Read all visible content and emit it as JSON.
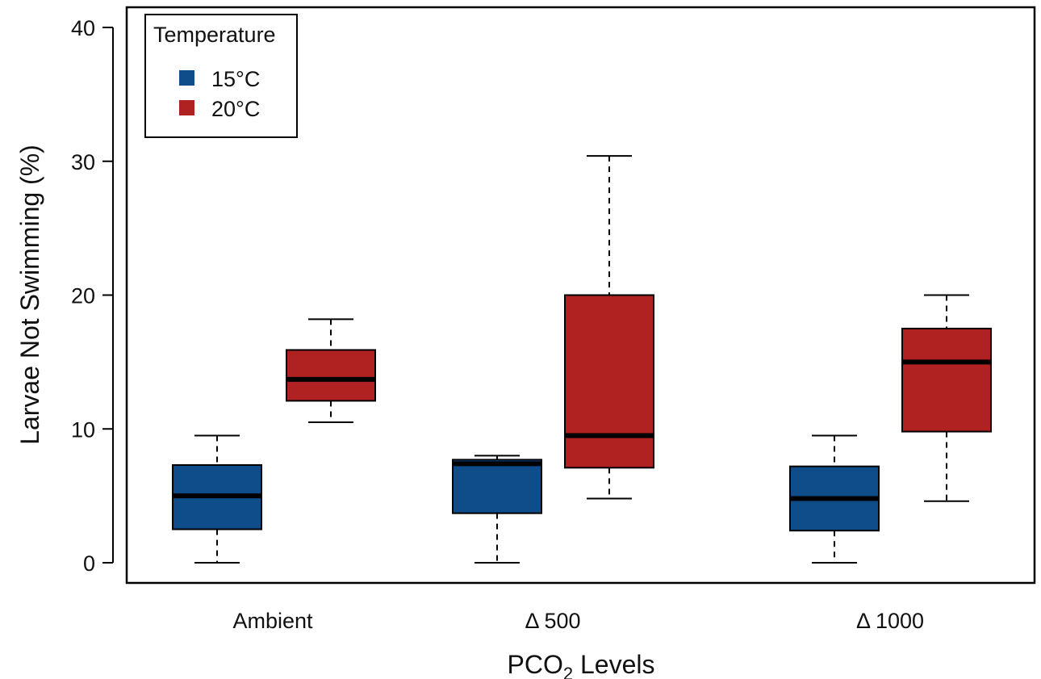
{
  "chart_data": {
    "type": "boxplot",
    "ylabel": "Larvae Not Swimming (%)",
    "xlabel_main": "PCO",
    "xlabel_sub": "2",
    "xlabel_rest": " Levels",
    "ylim": [
      0,
      40
    ],
    "yticks": [
      "0",
      "10",
      "20",
      "30",
      "40"
    ],
    "categories": [
      "Ambient",
      "Δ 500",
      "Δ 1000"
    ],
    "legend": {
      "title": "Temperature",
      "position": "top-left",
      "entries": [
        {
          "label": "15°C",
          "color": "#0f4c8a"
        },
        {
          "label": "20°C",
          "color": "#b02222"
        }
      ]
    },
    "series": [
      {
        "name": "15°C",
        "color": "#0f4c8a",
        "boxes": [
          {
            "min": 0,
            "q1": 2.5,
            "median": 5.0,
            "q3": 7.3,
            "max": 9.5
          },
          {
            "min": 0,
            "q1": 3.7,
            "median": 7.4,
            "q3": 7.7,
            "max": 8.0
          },
          {
            "min": 0,
            "q1": 2.4,
            "median": 4.8,
            "q3": 7.2,
            "max": 9.5
          }
        ]
      },
      {
        "name": "20°C",
        "color": "#b02222",
        "boxes": [
          {
            "min": 10.5,
            "q1": 12.1,
            "median": 13.7,
            "q3": 15.9,
            "max": 18.2
          },
          {
            "min": 4.8,
            "q1": 7.1,
            "median": 9.5,
            "q3": 20.0,
            "max": 30.4
          },
          {
            "min": 4.6,
            "q1": 9.8,
            "median": 15.0,
            "q3": 17.5,
            "max": 20.0
          }
        ]
      }
    ]
  }
}
